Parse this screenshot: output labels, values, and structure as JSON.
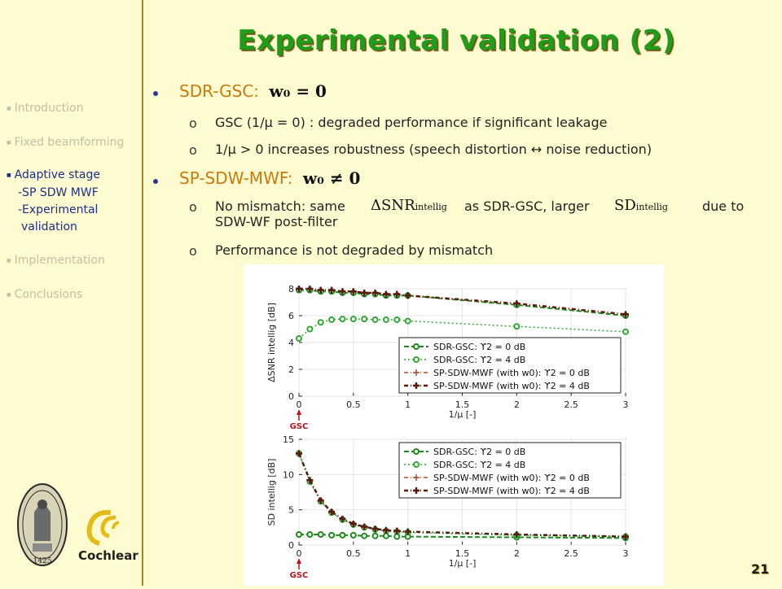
{
  "slide_title": "Experimental validation (2)",
  "page_number": "21",
  "sidebar": {
    "items": [
      {
        "label": "Introduction",
        "active": false
      },
      {
        "label": "Fixed beamforming",
        "active": false
      },
      {
        "label": "Adaptive stage",
        "active": true
      },
      {
        "label": "Implementation",
        "active": false
      },
      {
        "label": "Conclusions",
        "active": false
      }
    ],
    "subitems": [
      "-SP SDW MWF",
      "-Experimental",
      "validation"
    ]
  },
  "bullets": [
    {
      "label": "SDR-GSC:",
      "math": "w₀ = 0",
      "subs": [
        "GSC (1/μ = 0) : degraded performance if significant leakage",
        "1/μ > 0 increases robustness (speech distortion ↔ noise reduction)"
      ]
    },
    {
      "label": "SP-SDW-MWF:",
      "math": "w₀ ≠ 0",
      "subs": [
        "No mismatch: same",
        "as SDR-GSC, larger",
        "due to",
        "SDW-WF post-filter",
        "Performance is not degraded by mismatch"
      ],
      "math_terms": [
        "ΔSNR",
        "intellig",
        "SD",
        "intellig"
      ]
    }
  ],
  "logos": {
    "cochlear": "Cochlear",
    "seal_year": "1425"
  },
  "chart_data": [
    {
      "type": "line",
      "ylabel": "ΔSNR intellig [dB]",
      "xlabel": "1/μ [-]",
      "xlim": [
        0,
        3
      ],
      "ylim": [
        0,
        8
      ],
      "xticks": [
        "0",
        "0.5",
        "1",
        "1.5",
        "2",
        "2.5",
        "3"
      ],
      "yticks": [
        "0",
        "2",
        "4",
        "6",
        "8"
      ],
      "annotation": "GSC",
      "legend_position": "bottom-right",
      "series": [
        {
          "name": "SDR-GSC: ϒ2 = 0 dB",
          "x": [
            0,
            0.1,
            0.2,
            0.3,
            0.4,
            0.5,
            0.6,
            0.7,
            0.8,
            0.9,
            1,
            2,
            3
          ],
          "values": [
            7.9,
            7.9,
            7.8,
            7.8,
            7.7,
            7.7,
            7.6,
            7.6,
            7.5,
            7.5,
            7.5,
            6.8,
            6.0
          ]
        },
        {
          "name": "SDR-GSC: ϒ2 = 4 dB",
          "x": [
            0,
            0.1,
            0.2,
            0.3,
            0.4,
            0.5,
            0.6,
            0.7,
            0.8,
            0.9,
            1,
            2,
            3
          ],
          "values": [
            4.3,
            5.0,
            5.5,
            5.7,
            5.75,
            5.75,
            5.75,
            5.7,
            5.7,
            5.7,
            5.6,
            5.2,
            4.8
          ]
        },
        {
          "name": "SP-SDW-MWF (with w0): ϒ2 = 0 dB",
          "x": [
            0,
            0.1,
            0.2,
            0.3,
            0.4,
            0.5,
            0.6,
            0.7,
            0.8,
            0.9,
            1,
            2,
            3
          ],
          "values": [
            8.0,
            8.0,
            7.9,
            7.9,
            7.8,
            7.8,
            7.7,
            7.7,
            7.6,
            7.6,
            7.5,
            6.9,
            6.1
          ]
        },
        {
          "name": "SP-SDW-MWF (with w0): ϒ2 = 4 dB",
          "x": [
            0,
            0.1,
            0.2,
            0.3,
            0.4,
            0.5,
            0.6,
            0.7,
            0.8,
            0.9,
            1,
            2,
            3
          ],
          "values": [
            8.0,
            8.0,
            7.9,
            7.9,
            7.8,
            7.8,
            7.7,
            7.7,
            7.6,
            7.6,
            7.5,
            6.9,
            6.1
          ]
        }
      ]
    },
    {
      "type": "line",
      "ylabel": "SD intellig [dB]",
      "xlabel": "1/μ [-]",
      "xlim": [
        0,
        3
      ],
      "ylim": [
        0,
        15
      ],
      "xticks": [
        "0",
        "0.5",
        "1",
        "1.5",
        "2",
        "2.5",
        "3"
      ],
      "yticks": [
        "0",
        "5",
        "10",
        "15"
      ],
      "annotation": "GSC",
      "legend_position": "top-right",
      "series": [
        {
          "name": "SDR-GSC: ϒ2 = 0 dB",
          "x": [
            0,
            0.1,
            0.2,
            0.3,
            0.4,
            0.5,
            0.6,
            0.7,
            0.8,
            0.9,
            1,
            2,
            3
          ],
          "values": [
            1.5,
            1.5,
            1.5,
            1.4,
            1.4,
            1.4,
            1.3,
            1.3,
            1.3,
            1.2,
            1.2,
            1.1,
            1.0
          ]
        },
        {
          "name": "SDR-GSC: ϒ2 = 4 dB",
          "x": [
            0,
            0.1,
            0.2,
            0.3,
            0.4,
            0.5,
            0.6,
            0.7,
            0.8,
            0.9,
            1,
            2,
            3
          ],
          "values": [
            13,
            9.0,
            6.2,
            4.6,
            3.6,
            2.9,
            2.5,
            2.2,
            2.0,
            1.9,
            1.8,
            1.4,
            1.2
          ]
        },
        {
          "name": "SP-SDW-MWF (with w0): ϒ2 = 0 dB",
          "x": [
            0,
            0.1,
            0.2,
            0.3,
            0.4,
            0.5,
            0.6,
            0.7,
            0.8,
            0.9,
            1,
            2,
            3
          ],
          "values": [
            13,
            9.2,
            6.3,
            4.7,
            3.7,
            3.0,
            2.6,
            2.3,
            2.1,
            2.0,
            1.9,
            1.5,
            1.2
          ]
        },
        {
          "name": "SP-SDW-MWF (with w0): ϒ2 = 4 dB",
          "x": [
            0,
            0.1,
            0.2,
            0.3,
            0.4,
            0.5,
            0.6,
            0.7,
            0.8,
            0.9,
            1,
            2,
            3
          ],
          "values": [
            13,
            9.2,
            6.3,
            4.7,
            3.7,
            3.0,
            2.6,
            2.3,
            2.1,
            2.0,
            1.9,
            1.5,
            1.2
          ]
        }
      ]
    }
  ]
}
